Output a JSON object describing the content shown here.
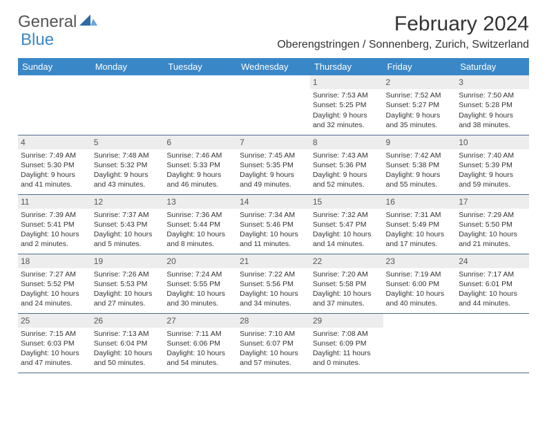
{
  "logo": {
    "general": "General",
    "blue": "Blue"
  },
  "title": "February 2024",
  "location": "Oberengstringen / Sonnenberg, Zurich, Switzerland",
  "colors": {
    "header_bg": "#3a87c7",
    "header_text": "#ffffff",
    "daynum_bg": "#ededed",
    "row_border": "#4a6a8a",
    "logo_blue": "#3a87c7",
    "body_text": "#333333"
  },
  "weekdays": [
    "Sunday",
    "Monday",
    "Tuesday",
    "Wednesday",
    "Thursday",
    "Friday",
    "Saturday"
  ],
  "weeks": [
    [
      null,
      null,
      null,
      null,
      {
        "n": "1",
        "sr": "Sunrise: 7:53 AM",
        "ss": "Sunset: 5:25 PM",
        "d1": "Daylight: 9 hours",
        "d2": "and 32 minutes."
      },
      {
        "n": "2",
        "sr": "Sunrise: 7:52 AM",
        "ss": "Sunset: 5:27 PM",
        "d1": "Daylight: 9 hours",
        "d2": "and 35 minutes."
      },
      {
        "n": "3",
        "sr": "Sunrise: 7:50 AM",
        "ss": "Sunset: 5:28 PM",
        "d1": "Daylight: 9 hours",
        "d2": "and 38 minutes."
      }
    ],
    [
      {
        "n": "4",
        "sr": "Sunrise: 7:49 AM",
        "ss": "Sunset: 5:30 PM",
        "d1": "Daylight: 9 hours",
        "d2": "and 41 minutes."
      },
      {
        "n": "5",
        "sr": "Sunrise: 7:48 AM",
        "ss": "Sunset: 5:32 PM",
        "d1": "Daylight: 9 hours",
        "d2": "and 43 minutes."
      },
      {
        "n": "6",
        "sr": "Sunrise: 7:46 AM",
        "ss": "Sunset: 5:33 PM",
        "d1": "Daylight: 9 hours",
        "d2": "and 46 minutes."
      },
      {
        "n": "7",
        "sr": "Sunrise: 7:45 AM",
        "ss": "Sunset: 5:35 PM",
        "d1": "Daylight: 9 hours",
        "d2": "and 49 minutes."
      },
      {
        "n": "8",
        "sr": "Sunrise: 7:43 AM",
        "ss": "Sunset: 5:36 PM",
        "d1": "Daylight: 9 hours",
        "d2": "and 52 minutes."
      },
      {
        "n": "9",
        "sr": "Sunrise: 7:42 AM",
        "ss": "Sunset: 5:38 PM",
        "d1": "Daylight: 9 hours",
        "d2": "and 55 minutes."
      },
      {
        "n": "10",
        "sr": "Sunrise: 7:40 AM",
        "ss": "Sunset: 5:39 PM",
        "d1": "Daylight: 9 hours",
        "d2": "and 59 minutes."
      }
    ],
    [
      {
        "n": "11",
        "sr": "Sunrise: 7:39 AM",
        "ss": "Sunset: 5:41 PM",
        "d1": "Daylight: 10 hours",
        "d2": "and 2 minutes."
      },
      {
        "n": "12",
        "sr": "Sunrise: 7:37 AM",
        "ss": "Sunset: 5:43 PM",
        "d1": "Daylight: 10 hours",
        "d2": "and 5 minutes."
      },
      {
        "n": "13",
        "sr": "Sunrise: 7:36 AM",
        "ss": "Sunset: 5:44 PM",
        "d1": "Daylight: 10 hours",
        "d2": "and 8 minutes."
      },
      {
        "n": "14",
        "sr": "Sunrise: 7:34 AM",
        "ss": "Sunset: 5:46 PM",
        "d1": "Daylight: 10 hours",
        "d2": "and 11 minutes."
      },
      {
        "n": "15",
        "sr": "Sunrise: 7:32 AM",
        "ss": "Sunset: 5:47 PM",
        "d1": "Daylight: 10 hours",
        "d2": "and 14 minutes."
      },
      {
        "n": "16",
        "sr": "Sunrise: 7:31 AM",
        "ss": "Sunset: 5:49 PM",
        "d1": "Daylight: 10 hours",
        "d2": "and 17 minutes."
      },
      {
        "n": "17",
        "sr": "Sunrise: 7:29 AM",
        "ss": "Sunset: 5:50 PM",
        "d1": "Daylight: 10 hours",
        "d2": "and 21 minutes."
      }
    ],
    [
      {
        "n": "18",
        "sr": "Sunrise: 7:27 AM",
        "ss": "Sunset: 5:52 PM",
        "d1": "Daylight: 10 hours",
        "d2": "and 24 minutes."
      },
      {
        "n": "19",
        "sr": "Sunrise: 7:26 AM",
        "ss": "Sunset: 5:53 PM",
        "d1": "Daylight: 10 hours",
        "d2": "and 27 minutes."
      },
      {
        "n": "20",
        "sr": "Sunrise: 7:24 AM",
        "ss": "Sunset: 5:55 PM",
        "d1": "Daylight: 10 hours",
        "d2": "and 30 minutes."
      },
      {
        "n": "21",
        "sr": "Sunrise: 7:22 AM",
        "ss": "Sunset: 5:56 PM",
        "d1": "Daylight: 10 hours",
        "d2": "and 34 minutes."
      },
      {
        "n": "22",
        "sr": "Sunrise: 7:20 AM",
        "ss": "Sunset: 5:58 PM",
        "d1": "Daylight: 10 hours",
        "d2": "and 37 minutes."
      },
      {
        "n": "23",
        "sr": "Sunrise: 7:19 AM",
        "ss": "Sunset: 6:00 PM",
        "d1": "Daylight: 10 hours",
        "d2": "and 40 minutes."
      },
      {
        "n": "24",
        "sr": "Sunrise: 7:17 AM",
        "ss": "Sunset: 6:01 PM",
        "d1": "Daylight: 10 hours",
        "d2": "and 44 minutes."
      }
    ],
    [
      {
        "n": "25",
        "sr": "Sunrise: 7:15 AM",
        "ss": "Sunset: 6:03 PM",
        "d1": "Daylight: 10 hours",
        "d2": "and 47 minutes."
      },
      {
        "n": "26",
        "sr": "Sunrise: 7:13 AM",
        "ss": "Sunset: 6:04 PM",
        "d1": "Daylight: 10 hours",
        "d2": "and 50 minutes."
      },
      {
        "n": "27",
        "sr": "Sunrise: 7:11 AM",
        "ss": "Sunset: 6:06 PM",
        "d1": "Daylight: 10 hours",
        "d2": "and 54 minutes."
      },
      {
        "n": "28",
        "sr": "Sunrise: 7:10 AM",
        "ss": "Sunset: 6:07 PM",
        "d1": "Daylight: 10 hours",
        "d2": "and 57 minutes."
      },
      {
        "n": "29",
        "sr": "Sunrise: 7:08 AM",
        "ss": "Sunset: 6:09 PM",
        "d1": "Daylight: 11 hours",
        "d2": "and 0 minutes."
      },
      null,
      null
    ]
  ]
}
